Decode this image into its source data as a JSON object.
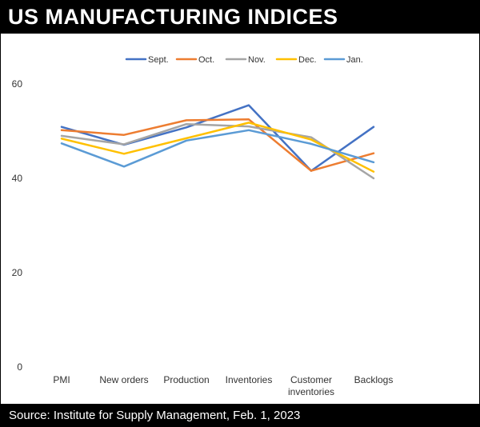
{
  "header": {
    "title": "US MANUFACTURING INDICES"
  },
  "footer": {
    "source": "Source: Institute for Supply Management, Feb. 1, 2023"
  },
  "chart_data": {
    "type": "line",
    "title": "US MANUFACTURING INDICES",
    "categories": [
      [
        "PMI"
      ],
      [
        "New orders"
      ],
      [
        "Production"
      ],
      [
        "Inventories"
      ],
      [
        "Customer",
        "inventories"
      ],
      [
        "Backlogs"
      ]
    ],
    "ylim": [
      0,
      60
    ],
    "yticks": [
      0,
      20,
      40,
      60
    ],
    "grid": false,
    "legend_position": "top",
    "series": [
      {
        "name": "Sept.",
        "color": "#4472C4",
        "values": [
          50.9,
          47.1,
          50.8,
          55.5,
          41.6,
          50.9
        ]
      },
      {
        "name": "Oct.",
        "color": "#ED7D31",
        "values": [
          50.2,
          49.2,
          52.3,
          52.5,
          41.6,
          45.3
        ]
      },
      {
        "name": "Nov.",
        "color": "#A5A5A5",
        "values": [
          49.0,
          47.2,
          51.5,
          51.0,
          48.7,
          40.0
        ]
      },
      {
        "name": "Dec.",
        "color": "#FFC000",
        "values": [
          48.4,
          45.2,
          48.5,
          51.8,
          48.2,
          41.4
        ]
      },
      {
        "name": "Jan.",
        "color": "#5B9BD5",
        "values": [
          47.4,
          42.5,
          48.0,
          50.2,
          47.3,
          43.4
        ]
      }
    ]
  }
}
